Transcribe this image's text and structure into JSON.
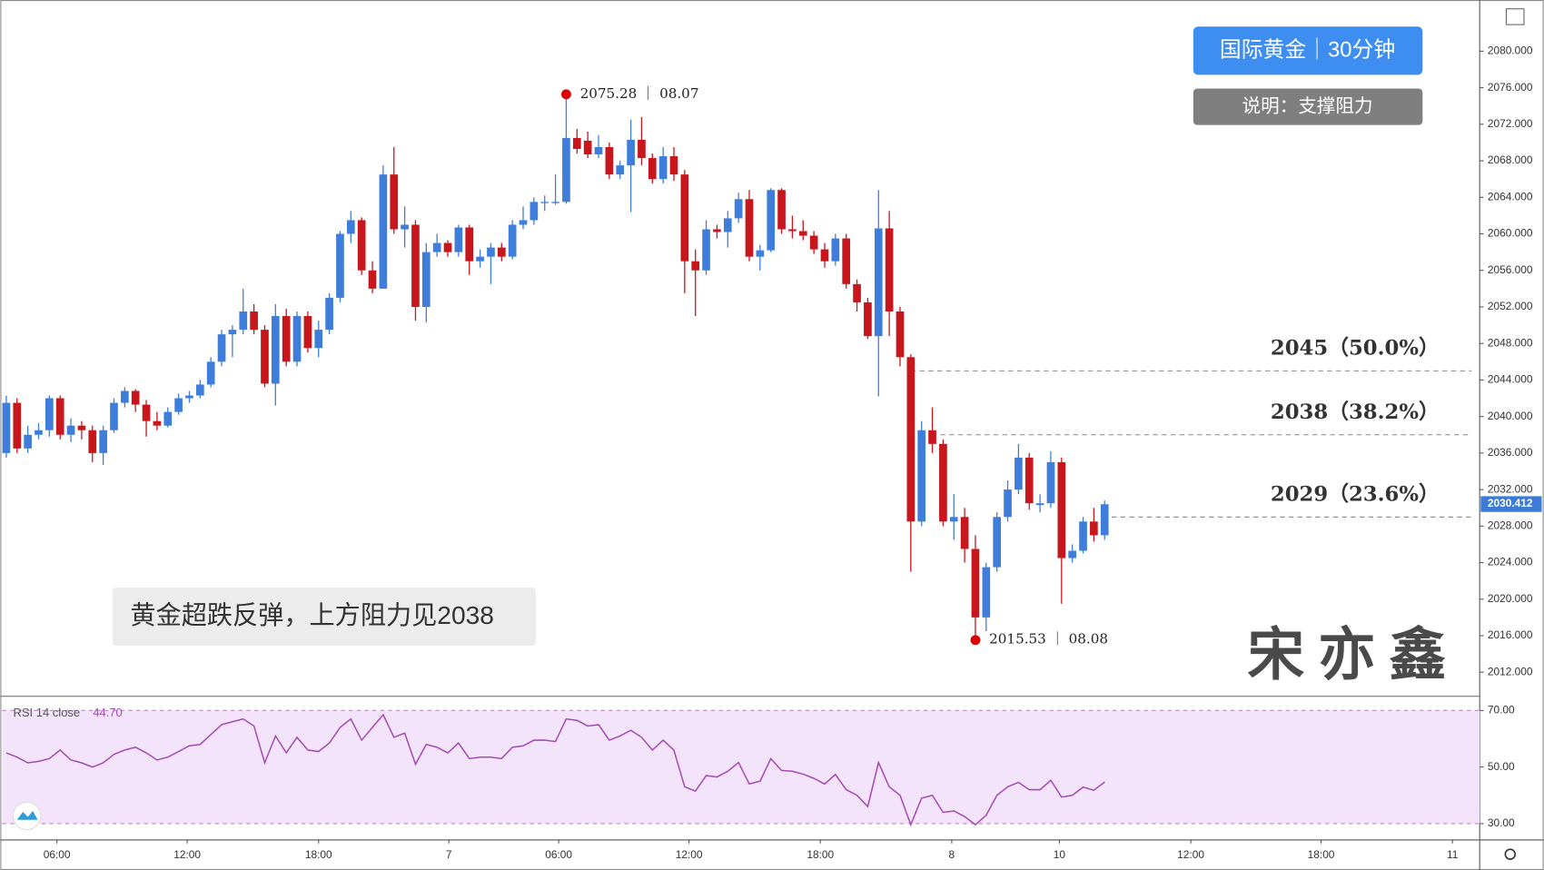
{
  "chart_data": [
    {
      "type": "candlestick",
      "title": "国际黄金｜30分钟",
      "subtitle": "说明：支撑阻力",
      "note": "黄金超跌反弹，上方阻力见2038",
      "watermark": "宋亦鑫",
      "up_color": "#3f7ddb",
      "down_color": "#c8161d",
      "ohlc": [
        [
          2036,
          2042.3,
          2035.5,
          2041.5
        ],
        [
          2041.5,
          2042,
          2036,
          2036.5
        ],
        [
          2036.5,
          2039,
          2036,
          2038
        ],
        [
          2038,
          2039.3,
          2037.5,
          2038.5
        ],
        [
          2038.5,
          2042.3,
          2037.8,
          2042
        ],
        [
          2042,
          2042.3,
          2037.5,
          2038
        ],
        [
          2038,
          2039.8,
          2037.2,
          2039
        ],
        [
          2039,
          2039.5,
          2037.5,
          2038.5
        ],
        [
          2038.5,
          2039,
          2035,
          2036
        ],
        [
          2036,
          2039,
          2034.7,
          2038.5
        ],
        [
          2038.5,
          2042,
          2038.2,
          2041.5
        ],
        [
          2041.5,
          2043.2,
          2041,
          2042.8
        ],
        [
          2042.8,
          2043,
          2040.5,
          2041.3
        ],
        [
          2041.3,
          2041.8,
          2037.8,
          2039.5
        ],
        [
          2039.5,
          2040.5,
          2038.5,
          2039
        ],
        [
          2039,
          2041,
          2038.8,
          2040.5
        ],
        [
          2040.5,
          2042.5,
          2040.2,
          2042
        ],
        [
          2042,
          2042.8,
          2041.5,
          2042.3
        ],
        [
          2042.3,
          2044,
          2042,
          2043.5
        ],
        [
          2043.5,
          2046.5,
          2043.2,
          2046
        ],
        [
          2046,
          2049.5,
          2045.5,
          2049
        ],
        [
          2049,
          2050,
          2046.5,
          2049.5
        ],
        [
          2049.5,
          2054,
          2049,
          2051.5
        ],
        [
          2051.5,
          2052.3,
          2049,
          2049.5
        ],
        [
          2049.5,
          2050,
          2043.2,
          2043.6
        ],
        [
          2043.6,
          2052.3,
          2041.2,
          2051
        ],
        [
          2051,
          2051.8,
          2045.5,
          2046
        ],
        [
          2046,
          2051.5,
          2045.5,
          2051
        ],
        [
          2051,
          2051.5,
          2047,
          2047.5
        ],
        [
          2047.5,
          2050.5,
          2046.5,
          2049.5
        ],
        [
          2049.5,
          2053.5,
          2049,
          2053
        ],
        [
          2053,
          2060.3,
          2052.5,
          2060
        ],
        [
          2060,
          2062.5,
          2059,
          2061.5
        ],
        [
          2061.5,
          2061.8,
          2055.5,
          2056
        ],
        [
          2056,
          2057,
          2053.5,
          2054
        ],
        [
          2054,
          2067.5,
          2054,
          2066.5
        ],
        [
          2066.5,
          2069.5,
          2060,
          2060.5
        ],
        [
          2060.5,
          2063,
          2058.5,
          2061
        ],
        [
          2061,
          2061.5,
          2050.5,
          2052
        ],
        [
          2052,
          2059,
          2050.3,
          2058
        ],
        [
          2058,
          2060,
          2057.5,
          2059
        ],
        [
          2059,
          2059.3,
          2057.5,
          2058
        ],
        [
          2058,
          2061,
          2057.5,
          2060.7
        ],
        [
          2060.7,
          2061,
          2055.5,
          2057
        ],
        [
          2057,
          2058.3,
          2056.3,
          2057.5
        ],
        [
          2057.5,
          2059,
          2054.5,
          2058.5
        ],
        [
          2058.5,
          2059,
          2057,
          2057.5
        ],
        [
          2057.5,
          2061.5,
          2057.2,
          2061
        ],
        [
          2061,
          2063,
          2060.5,
          2061.5
        ],
        [
          2061.5,
          2064,
          2061,
          2063.5
        ],
        [
          2063.5,
          2064.2,
          2062.5,
          2063.5
        ],
        [
          2063.5,
          2066.5,
          2063.2,
          2063.5
        ],
        [
          2063.5,
          2075.28,
          2063.3,
          2070.5
        ],
        [
          2070.5,
          2071.5,
          2068.8,
          2069.3
        ],
        [
          2070.2,
          2071.2,
          2068.3,
          2068.7
        ],
        [
          2068.7,
          2070.8,
          2068.3,
          2069.5
        ],
        [
          2069.5,
          2070,
          2066,
          2066.5
        ],
        [
          2066.5,
          2068,
          2066,
          2067.5
        ],
        [
          2067.5,
          2072.5,
          2062.4,
          2070.3
        ],
        [
          2070.3,
          2072.8,
          2067.5,
          2068.3
        ],
        [
          2068.3,
          2068.8,
          2065.5,
          2066
        ],
        [
          2066,
          2069.5,
          2065.5,
          2068.5
        ],
        [
          2068.5,
          2069.5,
          2065.8,
          2066.5
        ],
        [
          2066.5,
          2067,
          2053.5,
          2057
        ],
        [
          2057,
          2058.3,
          2051,
          2056
        ],
        [
          2056,
          2061.5,
          2055.5,
          2060.5
        ],
        [
          2060.5,
          2061,
          2059.5,
          2060.2
        ],
        [
          2060.2,
          2062.5,
          2058.5,
          2061.7
        ],
        [
          2061.7,
          2064.5,
          2061.2,
          2063.8
        ],
        [
          2063.8,
          2064.8,
          2057,
          2057.5
        ],
        [
          2057.5,
          2058.8,
          2056,
          2058.2
        ],
        [
          2058.2,
          2065,
          2058,
          2064.8
        ],
        [
          2064.8,
          2065,
          2060,
          2060.5
        ],
        [
          2060.5,
          2062,
          2059.5,
          2060.3
        ],
        [
          2060.3,
          2061.5,
          2059.3,
          2059.8
        ],
        [
          2059.8,
          2060.3,
          2057.8,
          2058.3
        ],
        [
          2058.3,
          2059,
          2056.3,
          2057
        ],
        [
          2057,
          2060,
          2056.5,
          2059.5
        ],
        [
          2059.5,
          2060,
          2054,
          2054.5
        ],
        [
          2054.5,
          2055,
          2051.5,
          2052.5
        ],
        [
          2052.5,
          2053,
          2048.5,
          2048.8
        ],
        [
          2048.8,
          2064.8,
          2042.2,
          2060.6
        ],
        [
          2060.6,
          2062.5,
          2048.8,
          2051.5
        ],
        [
          2051.5,
          2052,
          2045.5,
          2046.5
        ],
        [
          2046.5,
          2046.8,
          2023,
          2028.5
        ],
        [
          2028.5,
          2039.5,
          2028,
          2038.5
        ],
        [
          2038.5,
          2041,
          2036,
          2037
        ],
        [
          2037,
          2037.5,
          2028,
          2028.5
        ],
        [
          2028.5,
          2031.5,
          2026.5,
          2029
        ],
        [
          2029,
          2030,
          2024,
          2025.5
        ],
        [
          2025.5,
          2027,
          2015.53,
          2018
        ],
        [
          2018,
          2024,
          2016.5,
          2023.5
        ],
        [
          2023.5,
          2029.5,
          2023,
          2029
        ],
        [
          2029,
          2033,
          2028.5,
          2032
        ],
        [
          2032,
          2037,
          2031.5,
          2035.5
        ],
        [
          2035.5,
          2036,
          2029.8,
          2030.5
        ],
        [
          2030.3,
          2031.5,
          2029.5,
          2030.5
        ],
        [
          2030.5,
          2036.2,
          2030,
          2035
        ],
        [
          2035,
          2035.5,
          2019.5,
          2024.5
        ],
        [
          2024.5,
          2026,
          2024,
          2025.3
        ],
        [
          2025.3,
          2029,
          2025,
          2028.5
        ],
        [
          2028.5,
          2030,
          2026.3,
          2027
        ],
        [
          2027,
          2030.8,
          2026.5,
          2030.4
        ]
      ],
      "last_price": 2030.412,
      "levels": [
        {
          "value": 2045,
          "label": "2045（50.0%）"
        },
        {
          "value": 2038,
          "label": "2038（38.2%）"
        },
        {
          "value": 2029,
          "label": "2029（23.6%）"
        }
      ],
      "extremes": [
        {
          "x": 52,
          "value": 2075.28,
          "label": "2075.28 ｜ 08.07"
        },
        {
          "x": 90,
          "value": 2015.53,
          "label": "2015.53 ｜ 08.08"
        }
      ],
      "xlim": [
        -0.37,
        136.83
      ],
      "xticks": [
        {
          "value": 4.7,
          "label": "06:00"
        },
        {
          "value": 16.8,
          "label": "12:00"
        },
        {
          "value": 29,
          "label": "18:00"
        },
        {
          "value": 41.1,
          "label": "7"
        },
        {
          "value": 51.3,
          "label": "06:00"
        },
        {
          "value": 63.4,
          "label": "12:00"
        },
        {
          "value": 75.6,
          "label": "18:00"
        },
        {
          "value": 87.8,
          "label": "8"
        },
        {
          "value": 97.8,
          "label": "10"
        },
        {
          "value": 110,
          "label": "12:00"
        },
        {
          "value": 122.1,
          "label": "18:00"
        },
        {
          "value": 134.3,
          "label": "11"
        }
      ],
      "ylim": [
        2009.42,
        2085.39
      ],
      "yticks": [
        {
          "value": 2012,
          "label": "2012.000"
        },
        {
          "value": 2016,
          "label": "2016.000"
        },
        {
          "value": 2020,
          "label": "2020.000"
        },
        {
          "value": 2024,
          "label": "2024.000"
        },
        {
          "value": 2028,
          "label": "2028.000"
        },
        {
          "value": 2032,
          "label": "2032.000"
        },
        {
          "value": 2036,
          "label": "2036.000"
        },
        {
          "value": 2040,
          "label": "2040.000"
        },
        {
          "value": 2044,
          "label": "2044.000"
        },
        {
          "value": 2048,
          "label": "2048.000"
        },
        {
          "value": 2052,
          "label": "2052.000"
        },
        {
          "value": 2056,
          "label": "2056.000"
        },
        {
          "value": 2060,
          "label": "2060.000"
        },
        {
          "value": 2064,
          "label": "2064.000"
        },
        {
          "value": 2068,
          "label": "2068.000"
        },
        {
          "value": 2072,
          "label": "2072.000"
        },
        {
          "value": 2076,
          "label": "2076.000"
        },
        {
          "value": 2080,
          "label": "2080.000"
        }
      ],
      "grid": false
    },
    {
      "type": "line",
      "title": "RSI 14 close",
      "color": "#a24bb3",
      "values": [
        55,
        53.5,
        51.5,
        52,
        53,
        56,
        52.5,
        51.5,
        50,
        51.5,
        54.5,
        56,
        57,
        55,
        52.5,
        53.5,
        55.5,
        57.5,
        58,
        61.5,
        65,
        66,
        67,
        64.5,
        51.5,
        61,
        55,
        60.5,
        56,
        55.5,
        58.5,
        64,
        67,
        59.5,
        64,
        68.5,
        60.5,
        62,
        51,
        58,
        57,
        55,
        58.5,
        53,
        53.5,
        53.5,
        53,
        57,
        57.5,
        59.5,
        59.5,
        59,
        67,
        66.5,
        64.5,
        65,
        59.5,
        61,
        63,
        60.5,
        56,
        59.5,
        56,
        43,
        41.5,
        47,
        46.5,
        48.5,
        51.6,
        44,
        45,
        53,
        48.8,
        48.5,
        47.5,
        46,
        44,
        47.4,
        42,
        40,
        36,
        51.6,
        43,
        40,
        29.6,
        39,
        40,
        34,
        34.5,
        32.5,
        29.6,
        33,
        40,
        43,
        44.6,
        42,
        42,
        45.3,
        39.4,
        40,
        42.9,
        41.8,
        44.7
      ],
      "last_value": {
        "value": 44.7,
        "label": "44.70"
      },
      "bands": [
        30,
        70
      ],
      "band_color": "#f4e4fb",
      "xlim": [
        -0.37,
        136.83
      ],
      "ylim": [
        24.4,
        72.4
      ],
      "yticks": [
        {
          "value": 30,
          "label": "30.00"
        },
        {
          "value": 50,
          "label": "50.00"
        },
        {
          "value": 70,
          "label": "70.00"
        }
      ]
    }
  ]
}
